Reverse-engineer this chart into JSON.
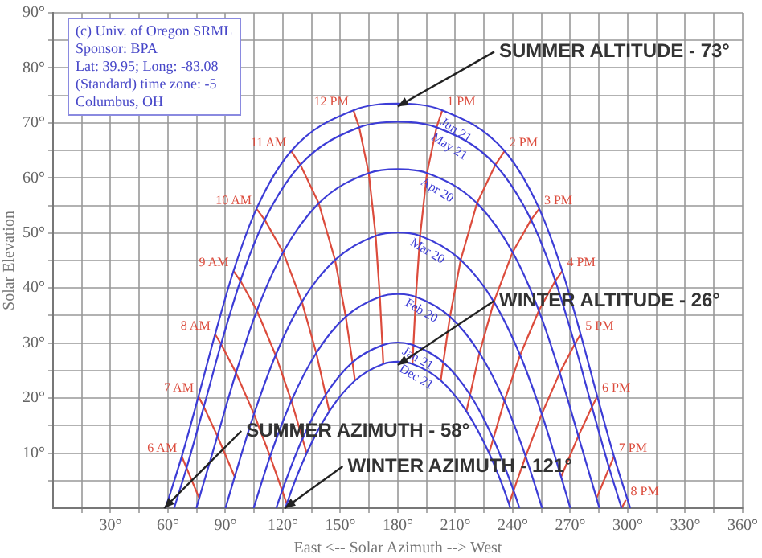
{
  "chart_data": {
    "type": "line",
    "xlabel": "East <-- Solar Azimuth --> West",
    "ylabel": "Solar Elevation",
    "xlim": [
      0,
      360
    ],
    "ylim": [
      0,
      90
    ],
    "xticks": [
      {
        "value": 15,
        "label": null
      },
      {
        "value": 30,
        "label": "30°"
      },
      {
        "value": 45,
        "label": null
      },
      {
        "value": 60,
        "label": "60°"
      },
      {
        "value": 75,
        "label": null
      },
      {
        "value": 90,
        "label": "90°"
      },
      {
        "value": 105,
        "label": null
      },
      {
        "value": 120,
        "label": "120°"
      },
      {
        "value": 135,
        "label": null
      },
      {
        "value": 150,
        "label": "150°"
      },
      {
        "value": 165,
        "label": null
      },
      {
        "value": 180,
        "label": "180°"
      },
      {
        "value": 195,
        "label": null
      },
      {
        "value": 210,
        "label": "210°"
      },
      {
        "value": 225,
        "label": null
      },
      {
        "value": 240,
        "label": "240°"
      },
      {
        "value": 255,
        "label": null
      },
      {
        "value": 270,
        "label": "270°"
      },
      {
        "value": 285,
        "label": null
      },
      {
        "value": 300,
        "label": "300°"
      },
      {
        "value": 315,
        "label": null
      },
      {
        "value": 330,
        "label": "330°"
      },
      {
        "value": 345,
        "label": null
      },
      {
        "value": 360,
        "label": "360°"
      }
    ],
    "yticks": [
      {
        "value": 5,
        "label": null
      },
      {
        "value": 10,
        "label": "10°"
      },
      {
        "value": 15,
        "label": null
      },
      {
        "value": 20,
        "label": "20°"
      },
      {
        "value": 25,
        "label": null
      },
      {
        "value": 30,
        "label": "30°"
      },
      {
        "value": 35,
        "label": null
      },
      {
        "value": 40,
        "label": "40°"
      },
      {
        "value": 45,
        "label": null
      },
      {
        "value": 50,
        "label": "50°"
      },
      {
        "value": 55,
        "label": null
      },
      {
        "value": 60,
        "label": "60°"
      },
      {
        "value": 65,
        "label": null
      },
      {
        "value": 70,
        "label": "70°"
      },
      {
        "value": 75,
        "label": null
      },
      {
        "value": 80,
        "label": "80°"
      },
      {
        "value": 85,
        "label": null
      },
      {
        "value": 90,
        "label": "90°"
      }
    ],
    "grid": true,
    "legend": false,
    "marker": "none",
    "line_style": "solid",
    "annotations": [
      "(c) Univ. of Oregon SRML",
      "Sponsor: BPA",
      "Lat: 39.95; Long: -83.08",
      "(Standard) time zone: -5",
      "Columbus, OH",
      {
        "text": "SUMMER ALTITUDE - 73°",
        "x": 180,
        "y": 73
      },
      {
        "text": "WINTER ALTITUDE - 26°",
        "x": 180,
        "y": 26
      },
      {
        "text": "SUMMER AZIMUTH - 58°",
        "x": 58,
        "y": 0
      },
      {
        "text": "WINTER AZIMUTH - 121°",
        "x": 121,
        "y": 0
      }
    ],
    "series": [
      {
        "name": "Jun 21",
        "color": "#3c3cd6",
        "x": [
          58.7,
          67.2,
          75.9,
          84.6,
          94.2,
          106.2,
          124.3,
          156.8,
          180,
          203.2,
          235.7,
          253.8,
          265.8,
          275.4,
          284.1,
          292.8,
          301.3
        ],
        "values": [
          0,
          9.4,
          20.3,
          31.6,
          43.1,
          54.4,
          64.9,
          72.3,
          73.5,
          72.3,
          64.9,
          54.4,
          43.1,
          31.6,
          20.3,
          9.4,
          0
        ]
      },
      {
        "name": "May 21",
        "color": "#3c3cd6",
        "x": [
          63.2,
          69.7,
          78.7,
          87.7,
          97.8,
          110.5,
          129.1,
          159.8,
          180,
          200.2,
          230.9,
          249.5,
          262.2,
          272.3,
          281.3,
          290.3,
          296.8
        ],
        "values": [
          0,
          7.3,
          18.4,
          29.8,
          41.3,
          52.4,
          62.4,
          69.2,
          70.2,
          69.2,
          62.4,
          52.4,
          41.3,
          29.8,
          18.4,
          7.3,
          0
        ]
      },
      {
        "name": "Apr 20",
        "color": "#3c3cd6",
        "x": [
          74.8,
          76.3,
          85.8,
          95.5,
          106.4,
          120.1,
          138.7,
          164.8,
          180,
          195.2,
          221.3,
          239.9,
          253.6,
          264.5,
          274.2,
          283.7,
          285.2
        ],
        "values": [
          0,
          1.8,
          13.1,
          24.6,
          35.9,
          46.5,
          55.4,
          60.9,
          61.6,
          60.9,
          55.4,
          46.5,
          35.9,
          24.6,
          13.1,
          1.8,
          0
        ]
      },
      {
        "name": "Mar 20",
        "color": "#3c3cd6",
        "x": [
          90,
          94.8,
          104.9,
          116.2,
          129.9,
          147.2,
          168.4,
          180,
          191.6,
          212.8,
          230.1,
          243.8,
          255.1,
          265.2,
          270
        ],
        "values": [
          0,
          5.7,
          17.1,
          27.8,
          37.5,
          45.1,
          49.5,
          50.1,
          49.5,
          45.1,
          37.5,
          27.8,
          17.1,
          5.7,
          0
        ]
      },
      {
        "name": "Feb 20",
        "color": "#3c3cd6",
        "x": [
          104.7,
          113.3,
          124.4,
          137.4,
          152.8,
          170.6,
          180,
          189.4,
          207.2,
          222.6,
          235.6,
          246.7,
          255.3
        ],
        "values": [
          0,
          9.4,
          19.5,
          28.2,
          34.8,
          38.4,
          38.9,
          38.4,
          34.8,
          28.2,
          19.5,
          9.4,
          0
        ]
      },
      {
        "name": "Jan 21",
        "color": "#3c3cd6",
        "x": [
          116.5,
          119.6,
          130.2,
          142.3,
          156.3,
          171.9,
          180,
          188.1,
          203.7,
          217.7,
          229.8,
          240.4,
          243.5
        ],
        "values": [
          0,
          3.2,
          12.6,
          20.6,
          26.5,
          29.6,
          30.1,
          29.6,
          26.5,
          20.6,
          12.6,
          3.2,
          0
        ]
      },
      {
        "name": "Dec 21",
        "color": "#3c3cd6",
        "x": [
          121.3,
          122.0,
          132.4,
          144.2,
          157.6,
          172.4,
          180,
          187.6,
          202.4,
          215.8,
          227.6,
          238.0,
          238.7
        ],
        "values": [
          0,
          0.8,
          10.0,
          17.6,
          23.2,
          26.2,
          26.6,
          26.2,
          23.2,
          17.6,
          10.0,
          0.8,
          0
        ]
      },
      {
        "name": "6 AM",
        "color": "#dc4b3c",
        "x": [
          76.3,
          69.7,
          67.2
        ],
        "values": [
          1.8,
          7.3,
          9.4
        ]
      },
      {
        "name": "7 AM",
        "color": "#dc4b3c",
        "x": [
          94.8,
          85.8,
          78.7,
          75.9
        ],
        "values": [
          5.7,
          13.1,
          18.4,
          20.3
        ]
      },
      {
        "name": "8 AM",
        "color": "#dc4b3c",
        "x": [
          122.0,
          119.6,
          113.3,
          104.9,
          95.5,
          87.7,
          84.6
        ],
        "values": [
          0.8,
          3.2,
          9.4,
          17.1,
          24.6,
          29.8,
          31.6
        ]
      },
      {
        "name": "9 AM",
        "color": "#dc4b3c",
        "x": [
          132.4,
          130.2,
          124.4,
          116.2,
          106.4,
          97.8,
          94.2
        ],
        "values": [
          10.0,
          12.6,
          19.5,
          27.8,
          35.9,
          41.3,
          43.1
        ]
      },
      {
        "name": "10 AM",
        "color": "#dc4b3c",
        "x": [
          144.2,
          142.3,
          137.4,
          129.9,
          120.1,
          110.5,
          106.2
        ],
        "values": [
          17.6,
          20.6,
          28.2,
          37.5,
          46.5,
          52.4,
          54.4
        ]
      },
      {
        "name": "11 AM",
        "color": "#dc4b3c",
        "x": [
          157.6,
          156.3,
          152.8,
          147.2,
          138.7,
          129.1,
          124.3
        ],
        "values": [
          23.2,
          26.5,
          34.8,
          45.1,
          55.4,
          62.4,
          64.9
        ]
      },
      {
        "name": "12 PM",
        "color": "#dc4b3c",
        "x": [
          172.4,
          171.9,
          170.6,
          168.4,
          164.8,
          159.8,
          156.8
        ],
        "values": [
          26.2,
          29.6,
          38.4,
          49.5,
          60.9,
          69.2,
          72.3
        ]
      },
      {
        "name": "1 PM",
        "color": "#dc4b3c",
        "x": [
          187.6,
          188.1,
          189.4,
          191.6,
          195.2,
          200.2,
          203.2
        ],
        "values": [
          26.2,
          29.6,
          38.4,
          49.5,
          60.9,
          69.2,
          72.3
        ]
      },
      {
        "name": "2 PM",
        "color": "#dc4b3c",
        "x": [
          202.4,
          203.7,
          207.2,
          212.8,
          221.3,
          230.9,
          235.7
        ],
        "values": [
          23.2,
          26.5,
          34.8,
          45.1,
          55.4,
          62.4,
          64.9
        ]
      },
      {
        "name": "3 PM",
        "color": "#dc4b3c",
        "x": [
          215.8,
          217.7,
          222.6,
          230.1,
          239.9,
          249.5,
          253.8
        ],
        "values": [
          17.6,
          20.6,
          28.2,
          37.5,
          46.5,
          52.4,
          54.4
        ]
      },
      {
        "name": "4 PM",
        "color": "#dc4b3c",
        "x": [
          227.6,
          229.8,
          235.6,
          243.8,
          253.6,
          262.2,
          265.8
        ],
        "values": [
          10.0,
          12.6,
          19.5,
          27.8,
          35.9,
          41.3,
          43.1
        ]
      },
      {
        "name": "5 PM",
        "color": "#dc4b3c",
        "x": [
          238.0,
          240.4,
          246.7,
          255.1,
          264.5,
          272.3,
          275.4
        ],
        "values": [
          0.8,
          3.2,
          9.4,
          17.1,
          24.6,
          29.8,
          31.6
        ]
      },
      {
        "name": "6 PM",
        "color": "#dc4b3c",
        "x": [
          265.2,
          274.2,
          281.3,
          284.1
        ],
        "values": [
          5.7,
          13.1,
          18.4,
          20.3
        ]
      },
      {
        "name": "7 PM",
        "color": "#dc4b3c",
        "x": [
          283.7,
          290.3,
          292.8
        ],
        "values": [
          1.8,
          7.3,
          9.4
        ]
      },
      {
        "name": "8 PM",
        "color": "#dc4b3c",
        "x": [
          296.8,
          299
        ],
        "values": [
          0,
          1.5
        ]
      }
    ]
  }
}
